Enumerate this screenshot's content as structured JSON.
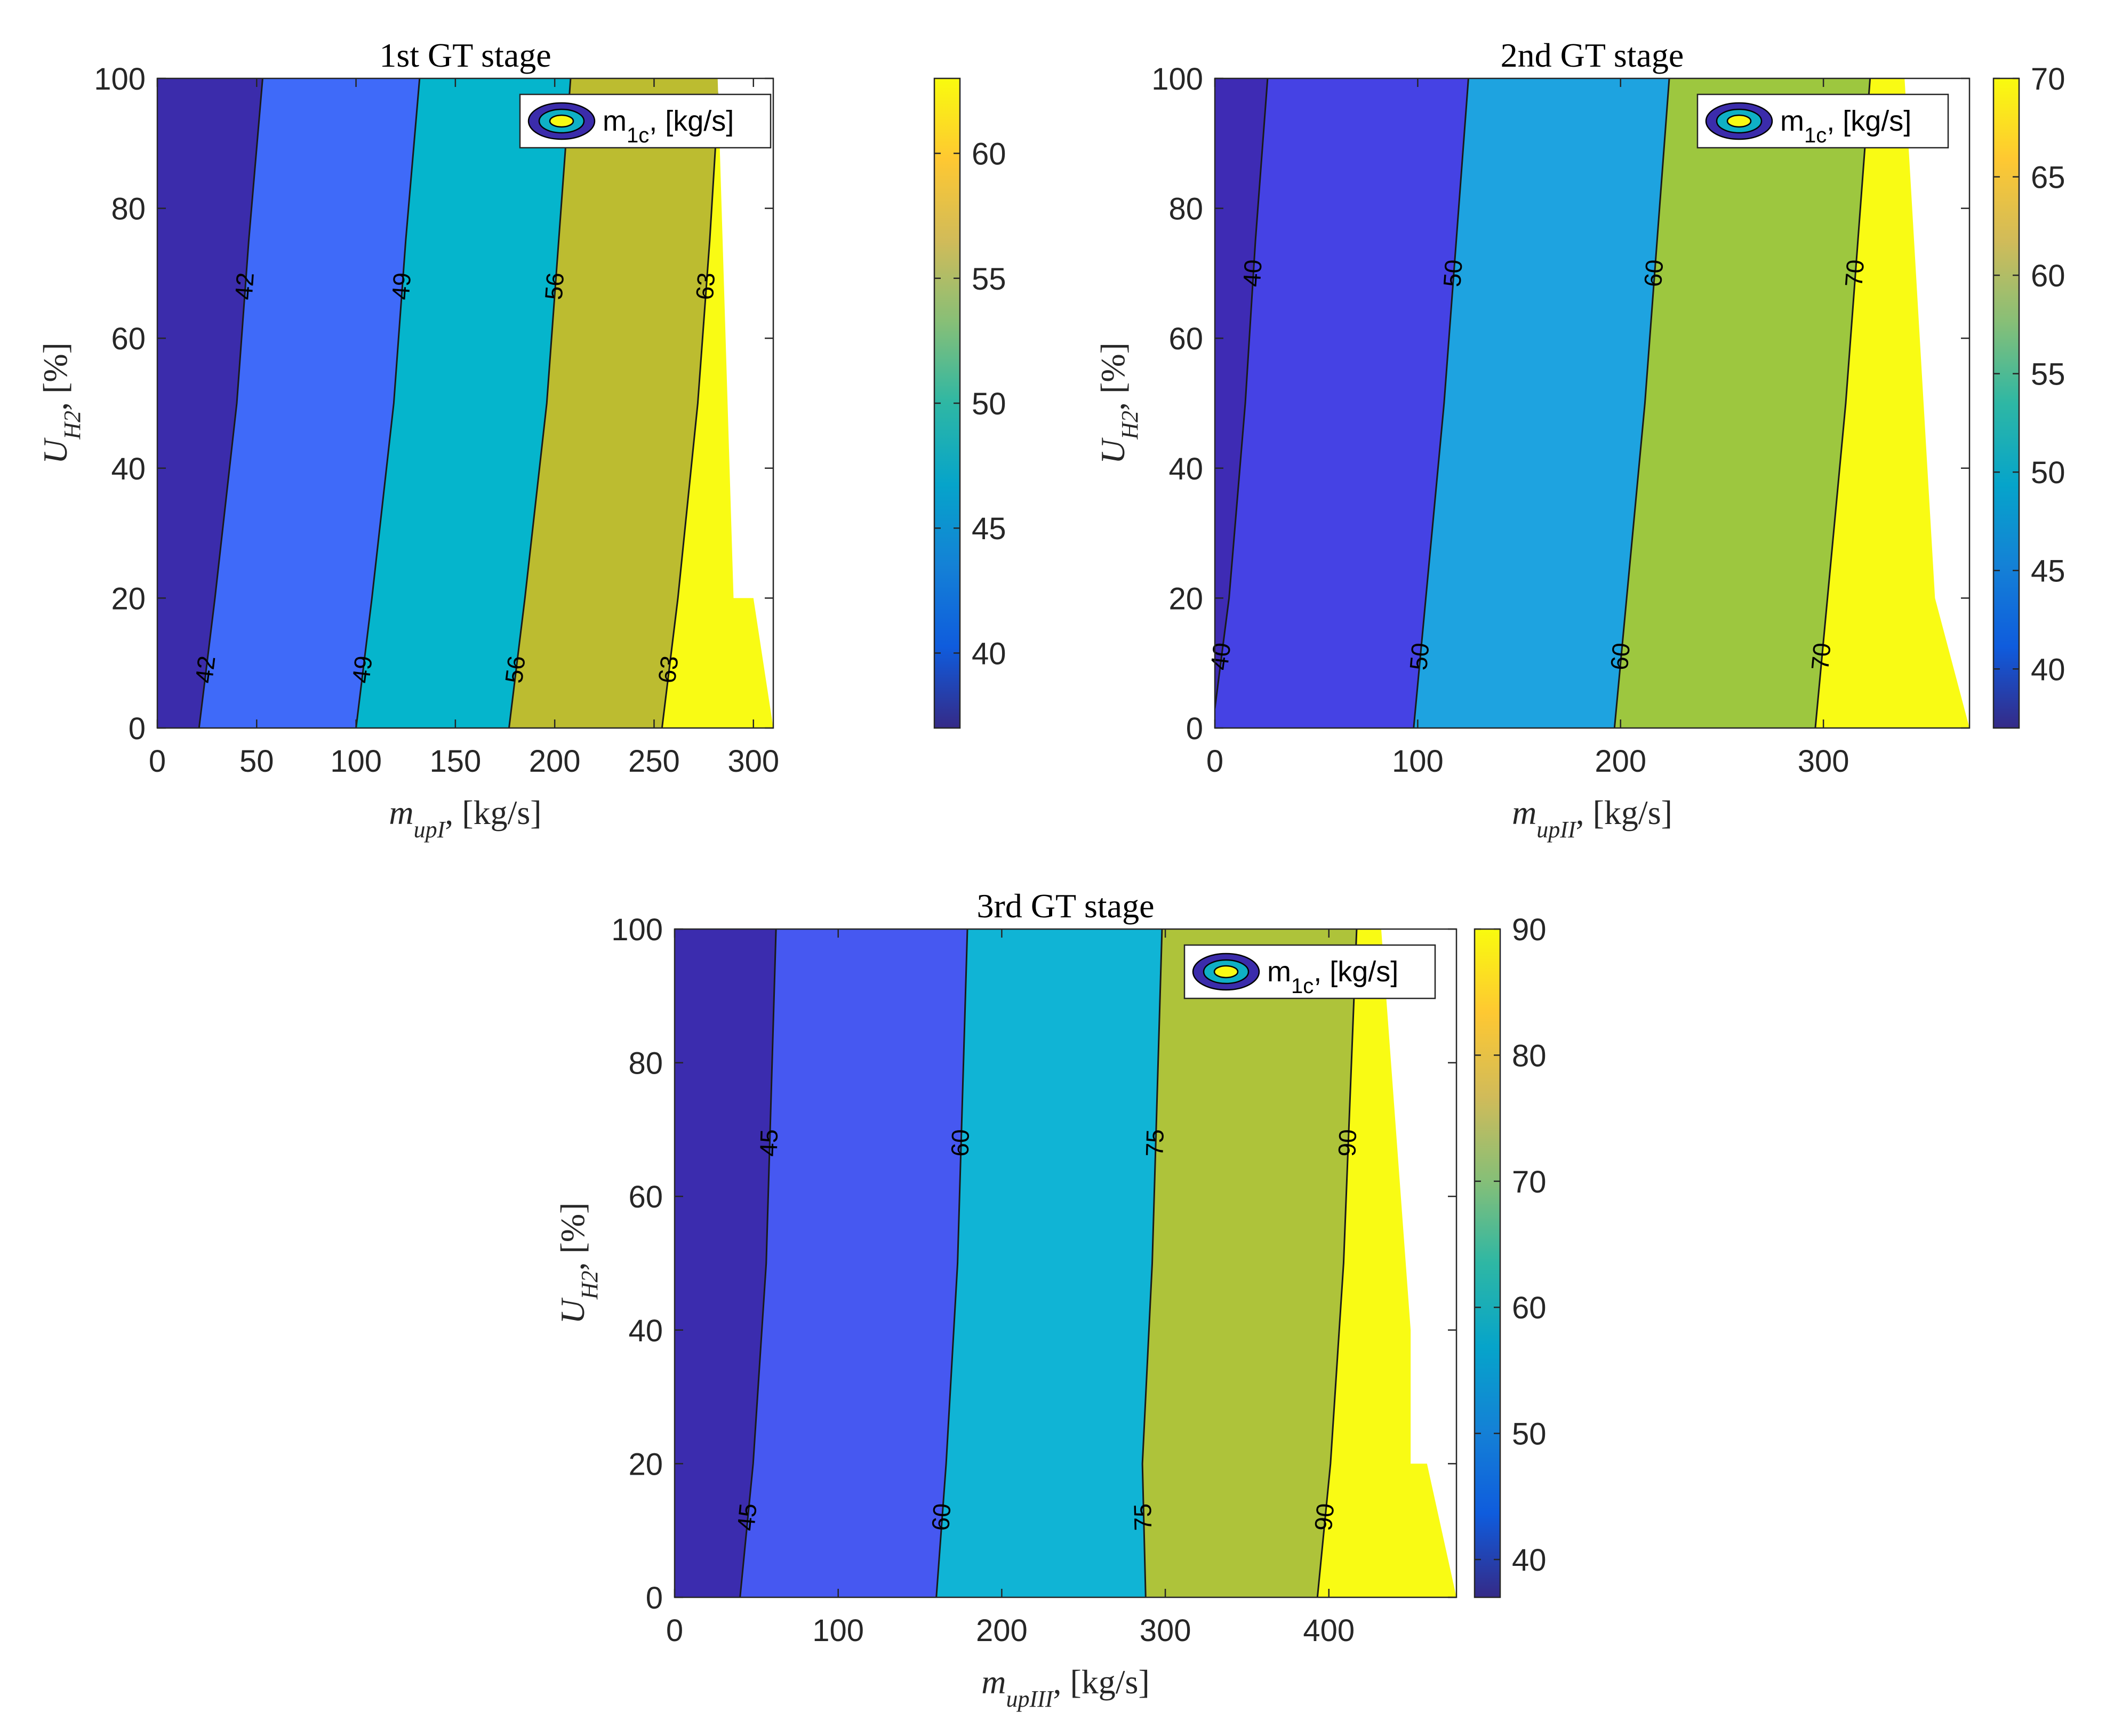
{
  "chart_data": [
    {
      "type": "contour",
      "title": "1st GT stage",
      "xlabel": {
        "main": "m",
        "sub": "upI",
        "rest": ", [kg/s]"
      },
      "ylabel": {
        "main": "U",
        "sub": "H2",
        "rest": ", [%]"
      },
      "xlim": [
        0,
        310
      ],
      "ylim": [
        0,
        100
      ],
      "xticks": [
        0,
        50,
        100,
        150,
        200,
        250,
        300
      ],
      "yticks": [
        0,
        20,
        40,
        60,
        80,
        100
      ],
      "legend": {
        "main": "m",
        "sub": "1c",
        "rest": ", [kg/s]"
      },
      "colorbar": {
        "range": [
          37,
          63
        ],
        "ticks": [
          40,
          45,
          50,
          55,
          60
        ]
      },
      "domain_right": [
        [
          310,
          0
        ],
        [
          300,
          20
        ],
        [
          290,
          20
        ],
        [
          282,
          100
        ]
      ],
      "bands": [
        {
          "color": "#3b2cab"
        },
        {
          "color": "#3f6af9"
        },
        {
          "color": "#05b5cc"
        },
        {
          "color": "#bcbc30"
        },
        {
          "color": "#f9fb14"
        }
      ],
      "contours": [
        {
          "level": "42",
          "points": [
            [
              21,
              0
            ],
            [
              29,
              20
            ],
            [
              40,
              50
            ],
            [
              46,
              75
            ],
            [
              53,
              100
            ]
          ],
          "label_u": [
            9,
            68
          ]
        },
        {
          "level": "49",
          "points": [
            [
              100,
              0
            ],
            [
              108,
              20
            ],
            [
              119,
              50
            ],
            [
              125,
              75
            ],
            [
              132,
              100
            ]
          ],
          "label_u": [
            9,
            68
          ]
        },
        {
          "level": "56",
          "points": [
            [
              177,
              0
            ],
            [
              185,
              20
            ],
            [
              196,
              50
            ],
            [
              202,
              75
            ],
            [
              208,
              100
            ]
          ],
          "label_u": [
            9,
            68
          ]
        },
        {
          "level": "63",
          "points": [
            [
              254,
              0
            ],
            [
              262,
              20
            ],
            [
              272,
              50
            ],
            [
              278,
              75
            ],
            [
              283,
              100
            ]
          ],
          "label_u": [
            9,
            68
          ]
        }
      ]
    },
    {
      "type": "contour",
      "title": "2nd GT stage",
      "xlabel": {
        "main": "m",
        "sub": "upII",
        "rest": ", [kg/s]"
      },
      "ylabel": {
        "main": "U",
        "sub": "H2",
        "rest": ", [%]"
      },
      "xlim": [
        0,
        372
      ],
      "ylim": [
        0,
        100
      ],
      "xticks": [
        0,
        100,
        200,
        300
      ],
      "yticks": [
        0,
        20,
        40,
        60,
        80,
        100
      ],
      "legend": {
        "main": "m",
        "sub": "1c",
        "rest": ", [kg/s]"
      },
      "colorbar": {
        "range": [
          37,
          70
        ],
        "ticks": [
          40,
          45,
          50,
          55,
          60,
          65,
          70
        ]
      },
      "domain_right": [
        [
          372,
          0
        ],
        [
          355,
          20
        ],
        [
          340,
          100
        ]
      ],
      "bands": [
        {
          "color": "#3e2bb4"
        },
        {
          "color": "#4542e4"
        },
        {
          "color": "#1ea3e0"
        },
        {
          "color": "#9dc73f"
        },
        {
          "color": "#f9fb14"
        }
      ],
      "contours": [
        {
          "level": "40",
          "points": [
            [
              0,
              3
            ],
            [
              7,
              20
            ],
            [
              15,
              50
            ],
            [
              20,
              75
            ],
            [
              26,
              100
            ]
          ],
          "label_u": [
            11,
            70
          ]
        },
        {
          "level": "50",
          "points": [
            [
              98,
              0
            ],
            [
              104,
              20
            ],
            [
              113,
              50
            ],
            [
              119,
              75
            ],
            [
              125,
              100
            ]
          ],
          "label_u": [
            11,
            70
          ]
        },
        {
          "level": "60",
          "points": [
            [
              197,
              0
            ],
            [
              203,
              20
            ],
            [
              212,
              50
            ],
            [
              218,
              75
            ],
            [
              224,
              100
            ]
          ],
          "label_u": [
            11,
            70
          ]
        },
        {
          "level": "70",
          "points": [
            [
              296,
              0
            ],
            [
              302,
              20
            ],
            [
              311,
              50
            ],
            [
              317,
              75
            ],
            [
              323,
              100
            ]
          ],
          "label_u": [
            11,
            70
          ]
        }
      ]
    },
    {
      "type": "contour",
      "title": "3rd GT stage",
      "xlabel": {
        "main": "m",
        "sub": "upIII",
        "rest": ", [kg/s]"
      },
      "ylabel": {
        "main": "U",
        "sub": "H2",
        "rest": ", [%]"
      },
      "xlim": [
        0,
        478
      ],
      "ylim": [
        0,
        100
      ],
      "xticks": [
        0,
        100,
        200,
        300,
        400
      ],
      "yticks": [
        0,
        20,
        40,
        60,
        80,
        100
      ],
      "legend": {
        "main": "m",
        "sub": "1c",
        "rest": ", [kg/s]"
      },
      "colorbar": {
        "range": [
          37,
          90
        ],
        "ticks": [
          40,
          50,
          60,
          70,
          80,
          90
        ]
      },
      "domain_right": [
        [
          478,
          0
        ],
        [
          460,
          20
        ],
        [
          450,
          20
        ],
        [
          450,
          40
        ],
        [
          432,
          100
        ]
      ],
      "bands": [
        {
          "color": "#3b2cae"
        },
        {
          "color": "#4658f1"
        },
        {
          "color": "#10b4d5"
        },
        {
          "color": "#aec33a"
        },
        {
          "color": "#f9fb14"
        }
      ],
      "contours": [
        {
          "level": "45",
          "points": [
            [
              40,
              0
            ],
            [
              48,
              20
            ],
            [
              56,
              50
            ],
            [
              59,
              75
            ],
            [
              62,
              100
            ]
          ],
          "label_u": [
            12,
            68
          ]
        },
        {
          "level": "60",
          "points": [
            [
              160,
              0
            ],
            [
              166,
              20
            ],
            [
              173,
              50
            ],
            [
              176,
              75
            ],
            [
              179,
              100
            ]
          ],
          "label_u": [
            12,
            68
          ]
        },
        {
          "level": "75",
          "points": [
            [
              288,
              0
            ],
            [
              286,
              20
            ],
            [
              292,
              50
            ],
            [
              295,
              75
            ],
            [
              298,
              100
            ]
          ],
          "label_u": [
            12,
            68
          ]
        },
        {
          "level": "90",
          "points": [
            [
              393,
              0
            ],
            [
              401,
              20
            ],
            [
              409,
              50
            ],
            [
              413,
              75
            ],
            [
              417,
              100
            ]
          ],
          "label_u": [
            12,
            68
          ]
        }
      ]
    }
  ]
}
